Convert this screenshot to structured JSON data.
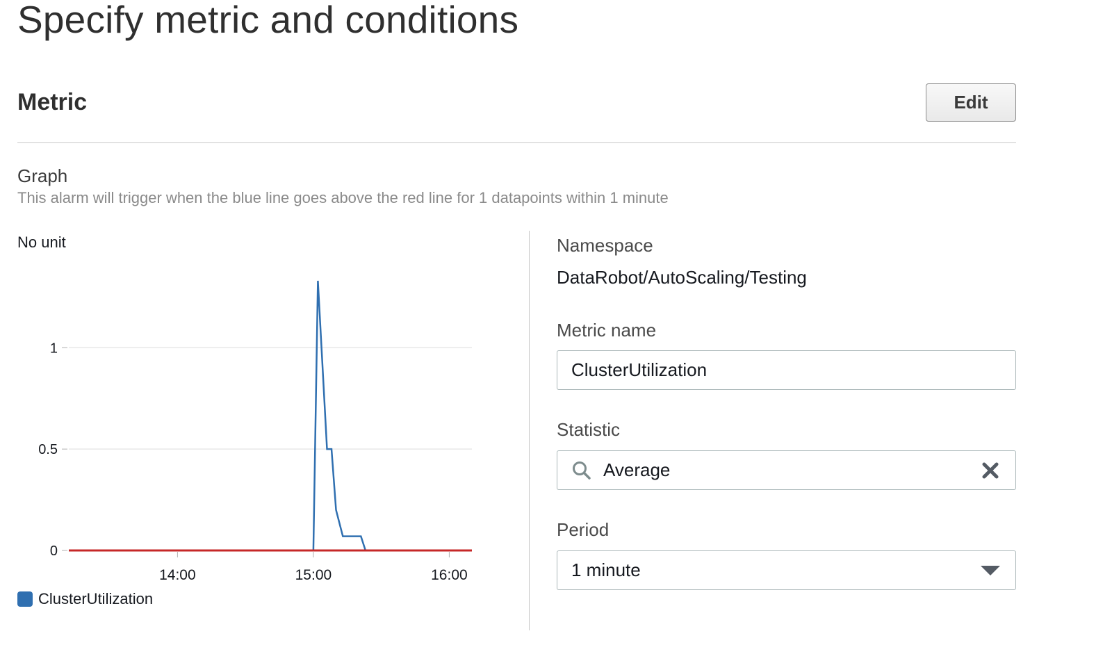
{
  "page": {
    "title": "Specify metric and conditions"
  },
  "metric_section": {
    "title": "Metric",
    "edit_label": "Edit"
  },
  "graph": {
    "heading": "Graph",
    "description": "This alarm will trigger when the blue line goes above the red line for 1 datapoints within 1 minute",
    "unit_label": "No unit",
    "legend_label": "ClusterUtilization"
  },
  "details": {
    "namespace_label": "Namespace",
    "namespace_value": "DataRobot/AutoScaling/Testing",
    "metric_name_label": "Metric name",
    "metric_name_value": "ClusterUtilization",
    "statistic_label": "Statistic",
    "statistic_value": "Average",
    "period_label": "Period",
    "period_value": "1 minute"
  },
  "colors": {
    "series": "#2f6fb0",
    "threshold": "#c62828",
    "gridline": "#e8e8e8"
  },
  "icons": {
    "statistic_search": "search-icon",
    "statistic_clear": "close-icon",
    "period_dropdown": "caret-down-icon"
  },
  "chart_data": {
    "type": "line",
    "xlabel": "",
    "ylabel": "No unit",
    "xlim": [
      "13:12",
      "16:10"
    ],
    "ylim": [
      0,
      1.33
    ],
    "x_ticks": [
      "14:00",
      "15:00",
      "16:00"
    ],
    "y_ticks": [
      0,
      0.5,
      1
    ],
    "grid": true,
    "legend": "bottom-left",
    "series": [
      {
        "name": "ClusterUtilization",
        "color": "#2f6fb0",
        "x": [
          "15:00",
          "15:02",
          "15:06",
          "15:08",
          "15:10",
          "15:13",
          "15:21",
          "15:23"
        ],
        "y": [
          0,
          1.33,
          0.5,
          0.5,
          0.2,
          0.07,
          0.07,
          0
        ]
      }
    ],
    "threshold": {
      "color": "#c62828",
      "value": 0
    }
  }
}
